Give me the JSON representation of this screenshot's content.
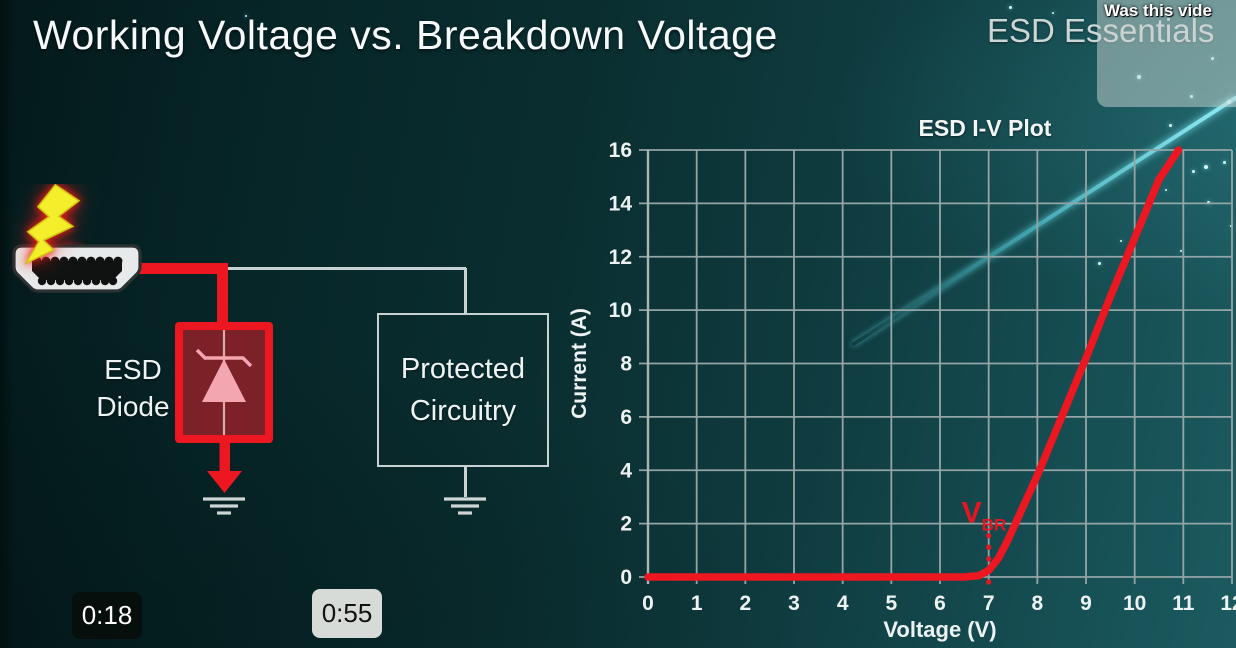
{
  "page_title": "Working Voltage vs. Breakdown Voltage",
  "watermark": "ESD Essentials",
  "like_prompt": {
    "question": "Was this vide",
    "icon": "thumbs-up"
  },
  "circuit": {
    "esd_diode_label": [
      "ESD",
      "Diode"
    ],
    "protected_label": [
      "Protected",
      "Circuitry"
    ]
  },
  "player": {
    "timestamp_1": "0:18",
    "timestamp_2": "0:55"
  },
  "chart_data": {
    "type": "line",
    "title": "ESD I-V Plot",
    "xlabel": "Voltage (V)",
    "ylabel": "Current (A)",
    "xlim": [
      0,
      12
    ],
    "ylim": [
      0,
      16
    ],
    "xticks": [
      0,
      1,
      2,
      3,
      4,
      5,
      6,
      7,
      8,
      9,
      10,
      11,
      12
    ],
    "yticks": [
      0,
      2,
      4,
      6,
      8,
      10,
      12,
      14,
      16
    ],
    "grid": true,
    "legend": false,
    "series": [
      {
        "name": "ESD diode I-V curve",
        "color": "#ec1721",
        "x": [
          0,
          1,
          2,
          3,
          4,
          5,
          6,
          6.5,
          6.8,
          7.0,
          7.2,
          7.4,
          7.7,
          8.0,
          8.5,
          9.0,
          9.5,
          10.0,
          10.5,
          10.9
        ],
        "y": [
          0,
          0,
          0,
          0,
          0,
          0,
          0,
          0,
          0.05,
          0.25,
          0.7,
          1.4,
          2.6,
          3.8,
          6.0,
          8.2,
          10.5,
          12.7,
          14.9,
          16.0
        ]
      }
    ],
    "annotations": [
      {
        "text": "V",
        "subscript": "BR",
        "x": 7,
        "color": "#e81420",
        "dotted_line_y_from": 1.55,
        "dotted_line_y_to": -0.28
      }
    ]
  }
}
